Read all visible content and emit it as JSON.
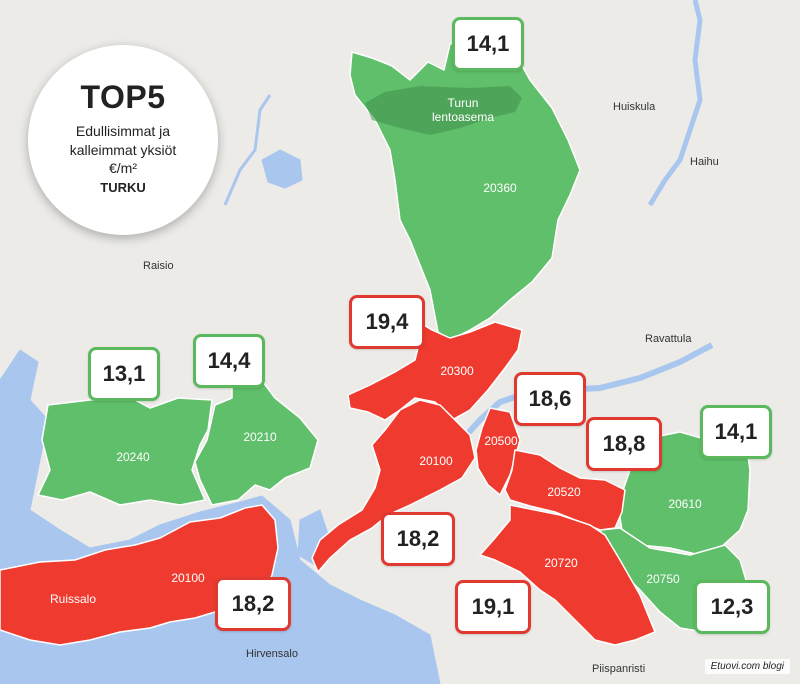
{
  "badge": {
    "title": "TOP5",
    "line1": "Edullisimmat ja",
    "line2": "kalleimmat yksiöt",
    "unit": "€/m²",
    "city": "TURKU"
  },
  "places": {
    "raisio": "Raisio",
    "huiskula": "Huiskula",
    "haihu": "Haihu",
    "ravattula": "Ravattula",
    "hirvensalo": "Hirvensalo",
    "piispanristi": "Piispanristi",
    "airport_line1": "Turun",
    "airport_line2": "lentoasema",
    "ruissalo": "Ruissalo"
  },
  "zones": [
    {
      "code": "20360",
      "price": "14,1",
      "category": "cheap"
    },
    {
      "code": "20240",
      "price": "13,1",
      "category": "cheap"
    },
    {
      "code": "20210",
      "price": "14,4",
      "category": "cheap"
    },
    {
      "code": "20610",
      "price": "14,1",
      "category": "cheap"
    },
    {
      "code": "20750",
      "price": "12,3",
      "category": "cheap"
    },
    {
      "code": "20300",
      "price": "19,4",
      "category": "expensive"
    },
    {
      "code": "20100",
      "price": "18,2",
      "category": "expensive"
    },
    {
      "code": "20500",
      "price": "18,6",
      "category": "expensive"
    },
    {
      "code": "20520",
      "price": "18,8",
      "category": "expensive"
    },
    {
      "code": "20720",
      "price": "19,1",
      "category": "expensive"
    }
  ],
  "extra_labels": {
    "ruissalo_zone": "20100",
    "ruissalo_price": "18,2"
  },
  "colors": {
    "cheap": "#5fbf6a",
    "expensive": "#ef3b2f",
    "water": "#a9c6ef",
    "land": "#ecebe8"
  },
  "credit": "Etuovi.com blogi"
}
